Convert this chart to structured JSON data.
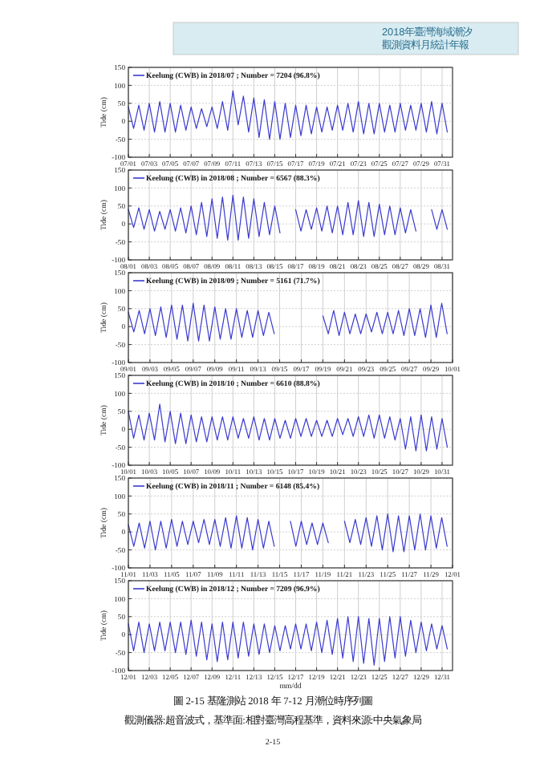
{
  "chart_data": [
    {
      "type": "line",
      "ylabel": "Tide (cm)",
      "ylim": [
        -100,
        150
      ],
      "yticks": [
        -100,
        -50,
        0,
        50,
        100,
        150
      ],
      "xlim": [
        "2018-07-01",
        "2018-08-01"
      ],
      "grid": true,
      "legend": "top left",
      "line_style": "solid",
      "annotations": [
        "2018年臺灣海域潮汐",
        "觀測資料月統計年報"
      ],
      "xticks": [
        {
          "value": "2018-07-01",
          "label": "07/01"
        },
        {
          "value": "2018-07-03",
          "label": "07/03"
        },
        {
          "value": "2018-07-05",
          "label": "07/05"
        },
        {
          "value": "2018-07-07",
          "label": "07/07"
        },
        {
          "value": "2018-07-09",
          "label": "07/09"
        },
        {
          "value": "2018-07-11",
          "label": "07/11"
        },
        {
          "value": "2018-07-13",
          "label": "07/13"
        },
        {
          "value": "2018-07-15",
          "label": "07/15"
        },
        {
          "value": "2018-07-17",
          "label": "07/17"
        },
        {
          "value": "2018-07-19",
          "label": "07/19"
        },
        {
          "value": "2018-07-21",
          "label": "07/21"
        },
        {
          "value": "2018-07-23",
          "label": "07/23"
        },
        {
          "value": "2018-07-25",
          "label": "07/25"
        },
        {
          "value": "2018-07-27",
          "label": "07/27"
        },
        {
          "value": "2018-07-29",
          "label": "07/29"
        },
        {
          "value": "2018-07-31",
          "label": "07/31"
        }
      ],
      "series": [
        {
          "name": "Keelung (CWB) in 2018/07 ; Number = 7204 (96.8%)",
          "color": "#3a3ad0",
          "x": [
            "2018-07-01",
            "2018-07-01T12:00",
            "2018-07-02",
            "2018-07-02T12:00",
            "2018-07-03",
            "2018-07-03T12:00",
            "2018-07-04",
            "2018-07-04T12:00",
            "2018-07-05",
            "2018-07-05T12:00",
            "2018-07-06",
            "2018-07-06T12:00",
            "2018-07-07",
            "2018-07-07T12:00",
            "2018-07-08",
            "2018-07-08T12:00",
            "2018-07-09",
            "2018-07-09T12:00",
            "2018-07-10",
            "2018-07-10T12:00",
            "2018-07-11",
            "2018-07-11T12:00",
            "2018-07-12",
            "2018-07-12T12:00",
            "2018-07-13",
            "2018-07-13T12:00",
            "2018-07-14",
            "2018-07-14T12:00",
            "2018-07-15",
            "2018-07-15T12:00",
            "2018-07-16",
            "2018-07-16T12:00",
            "2018-07-17",
            "2018-07-17T12:00",
            "2018-07-18",
            "2018-07-18T12:00",
            "2018-07-19",
            "2018-07-19T12:00",
            "2018-07-20",
            "2018-07-20T12:00",
            "2018-07-21",
            "2018-07-21T12:00",
            "2018-07-22",
            "2018-07-22T12:00",
            "2018-07-23",
            "2018-07-23T12:00",
            "2018-07-24",
            "2018-07-24T12:00",
            "2018-07-25",
            "2018-07-25T12:00",
            "2018-07-26",
            "2018-07-26T12:00",
            "2018-07-27",
            "2018-07-27T12:00",
            "2018-07-28",
            "2018-07-28T12:00",
            "2018-07-29",
            "2018-07-29T12:00",
            "2018-07-30",
            "2018-07-30T12:00",
            "2018-07-31",
            "2018-07-31T12:00"
          ],
          "values": [
            40,
            -20,
            45,
            -25,
            50,
            -30,
            55,
            -30,
            50,
            -30,
            45,
            -25,
            40,
            -20,
            35,
            -15,
            40,
            -20,
            55,
            -25,
            85,
            -10,
            70,
            -30,
            65,
            -45,
            60,
            -50,
            55,
            -50,
            50,
            -45,
            45,
            -40,
            45,
            -35,
            40,
            -30,
            40,
            -25,
            45,
            -25,
            50,
            -30,
            55,
            -35,
            50,
            -35,
            50,
            -30,
            45,
            -30,
            50,
            -25,
            45,
            -25,
            50,
            -30,
            55,
            -35,
            50,
            -30
          ]
        }
      ]
    },
    {
      "type": "line",
      "ylabel": "Tide (cm)",
      "ylim": [
        -100,
        150
      ],
      "yticks": [
        -100,
        -50,
        0,
        50,
        100,
        150
      ],
      "xlim": [
        "2018-08-01",
        "2018-09-01"
      ],
      "grid": true,
      "legend": "top left",
      "line_style": "solid",
      "xticks": [
        {
          "value": "2018-08-01",
          "label": "08/01"
        },
        {
          "value": "2018-08-03",
          "label": "08/03"
        },
        {
          "value": "2018-08-05",
          "label": "08/05"
        },
        {
          "value": "2018-08-07",
          "label": "08/07"
        },
        {
          "value": "2018-08-09",
          "label": "08/09"
        },
        {
          "value": "2018-08-11",
          "label": "08/11"
        },
        {
          "value": "2018-08-13",
          "label": "08/13"
        },
        {
          "value": "2018-08-15",
          "label": "08/15"
        },
        {
          "value": "2018-08-17",
          "label": "08/17"
        },
        {
          "value": "2018-08-19",
          "label": "08/19"
        },
        {
          "value": "2018-08-21",
          "label": "08/21"
        },
        {
          "value": "2018-08-23",
          "label": "08/23"
        },
        {
          "value": "2018-08-25",
          "label": "08/25"
        },
        {
          "value": "2018-08-27",
          "label": "08/27"
        },
        {
          "value": "2018-08-29",
          "label": "08/29"
        },
        {
          "value": "2018-08-31",
          "label": "08/31"
        }
      ],
      "series": [
        {
          "name": "Keelung (CWB) in 2018/08 ; Number = 6567 (88.3%)",
          "color": "#3a3ad0",
          "x": [
            "2018-08-01",
            "2018-08-01T12:00",
            "2018-08-02",
            "2018-08-02T12:00",
            "2018-08-03",
            "2018-08-03T12:00",
            "2018-08-04",
            "2018-08-04T12:00",
            "2018-08-05",
            "2018-08-05T12:00",
            "2018-08-06",
            "2018-08-06T12:00",
            "2018-08-07",
            "2018-08-07T12:00",
            "2018-08-08",
            "2018-08-08T12:00",
            "2018-08-09",
            "2018-08-09T12:00",
            "2018-08-10",
            "2018-08-10T12:00",
            "2018-08-11",
            "2018-08-11T12:00",
            "2018-08-12",
            "2018-08-12T12:00",
            "2018-08-13",
            "2018-08-13T12:00",
            "2018-08-14",
            "2018-08-14T12:00",
            "2018-08-15",
            "2018-08-15T12:00"
          ],
          "values": [
            40,
            -10,
            45,
            -15,
            40,
            -20,
            35,
            -15,
            40,
            -20,
            45,
            -25,
            50,
            -30,
            60,
            -35,
            70,
            -40,
            75,
            -45,
            80,
            -45,
            75,
            -40,
            70,
            -35,
            60,
            -30,
            50,
            -25
          ]
        },
        {
          "color": "#3a3ad0",
          "x": [
            "2018-08-17",
            "2018-08-17T12:00",
            "2018-08-18",
            "2018-08-18T12:00",
            "2018-08-19",
            "2018-08-19T12:00",
            "2018-08-20",
            "2018-08-20T12:00",
            "2018-08-21",
            "2018-08-21T12:00",
            "2018-08-22",
            "2018-08-22T12:00",
            "2018-08-23",
            "2018-08-23T12:00",
            "2018-08-24",
            "2018-08-24T12:00",
            "2018-08-25",
            "2018-08-25T12:00",
            "2018-08-26",
            "2018-08-26T12:00",
            "2018-08-27",
            "2018-08-27T12:00",
            "2018-08-28",
            "2018-08-28T12:00"
          ],
          "values": [
            40,
            -20,
            40,
            -15,
            45,
            -20,
            50,
            -25,
            50,
            -30,
            60,
            -30,
            65,
            -35,
            60,
            -35,
            55,
            -30,
            50,
            -30,
            45,
            -25,
            40,
            -20
          ]
        },
        {
          "color": "#3a3ad0",
          "x": [
            "2018-08-30",
            "2018-08-30T12:00",
            "2018-08-31",
            "2018-08-31T12:00"
          ],
          "values": [
            40,
            -15,
            40,
            -15
          ]
        }
      ]
    },
    {
      "type": "line",
      "ylabel": "Tide (cm)",
      "ylim": [
        -100,
        150
      ],
      "yticks": [
        -100,
        -50,
        0,
        50,
        100,
        150
      ],
      "xlim": [
        "2018-09-01",
        "2018-10-01"
      ],
      "grid": true,
      "legend": "top left",
      "line_style": "solid",
      "xticks": [
        {
          "value": "2018-09-01",
          "label": "09/01"
        },
        {
          "value": "2018-09-03",
          "label": "09/03"
        },
        {
          "value": "2018-09-05",
          "label": "09/05"
        },
        {
          "value": "2018-09-07",
          "label": "09/07"
        },
        {
          "value": "2018-09-09",
          "label": "09/09"
        },
        {
          "value": "2018-09-11",
          "label": "09/11"
        },
        {
          "value": "2018-09-13",
          "label": "09/13"
        },
        {
          "value": "2018-09-15",
          "label": "09/15"
        },
        {
          "value": "2018-09-17",
          "label": "09/17"
        },
        {
          "value": "2018-09-19",
          "label": "09/19"
        },
        {
          "value": "2018-09-21",
          "label": "09/21"
        },
        {
          "value": "2018-09-23",
          "label": "09/23"
        },
        {
          "value": "2018-09-25",
          "label": "09/25"
        },
        {
          "value": "2018-09-27",
          "label": "09/27"
        },
        {
          "value": "2018-09-29",
          "label": "09/29"
        },
        {
          "value": "2018-10-01",
          "label": "10/01"
        }
      ],
      "series": [
        {
          "name": "Keelung (CWB) in 2018/09 ; Number = 5161 (71.7%)",
          "color": "#3a3ad0",
          "x": [
            "2018-09-01",
            "2018-09-01T12:00",
            "2018-09-02",
            "2018-09-02T12:00",
            "2018-09-03",
            "2018-09-03T12:00",
            "2018-09-04",
            "2018-09-04T12:00",
            "2018-09-05",
            "2018-09-05T12:00",
            "2018-09-06",
            "2018-09-06T12:00",
            "2018-09-07",
            "2018-09-07T12:00",
            "2018-09-08",
            "2018-09-08T12:00",
            "2018-09-09",
            "2018-09-09T12:00",
            "2018-09-10",
            "2018-09-10T12:00",
            "2018-09-11",
            "2018-09-11T12:00",
            "2018-09-12",
            "2018-09-12T12:00",
            "2018-09-13",
            "2018-09-13T12:00",
            "2018-09-14",
            "2018-09-14T12:00"
          ],
          "values": [
            40,
            -15,
            45,
            -20,
            50,
            -25,
            55,
            -30,
            60,
            -35,
            60,
            -40,
            65,
            -40,
            60,
            -40,
            55,
            -35,
            50,
            -35,
            50,
            -30,
            45,
            -30,
            45,
            -25,
            40,
            -20
          ]
        },
        {
          "color": "#3a3ad0",
          "x": [
            "2018-09-19",
            "2018-09-19T12:00",
            "2018-09-20",
            "2018-09-20T12:00",
            "2018-09-21",
            "2018-09-21T12:00",
            "2018-09-22",
            "2018-09-22T12:00",
            "2018-09-23",
            "2018-09-23T12:00",
            "2018-09-24",
            "2018-09-24T12:00",
            "2018-09-25",
            "2018-09-25T12:00",
            "2018-09-26",
            "2018-09-26T12:00",
            "2018-09-27",
            "2018-09-27T12:00",
            "2018-09-28",
            "2018-09-28T12:00",
            "2018-09-29",
            "2018-09-29T12:00",
            "2018-09-30",
            "2018-09-30T12:00"
          ],
          "values": [
            30,
            -20,
            45,
            -25,
            40,
            -20,
            35,
            -20,
            35,
            -15,
            40,
            -20,
            40,
            -20,
            45,
            -25,
            50,
            -25,
            50,
            -30,
            60,
            -30,
            65,
            -20
          ]
        }
      ]
    },
    {
      "type": "line",
      "ylabel": "Tide (cm)",
      "ylim": [
        -100,
        150
      ],
      "yticks": [
        -100,
        -50,
        0,
        50,
        100,
        150
      ],
      "xlim": [
        "2018-10-01",
        "2018-11-01"
      ],
      "grid": true,
      "legend": "top left",
      "line_style": "solid",
      "xticks": [
        {
          "value": "2018-10-01",
          "label": "10/01"
        },
        {
          "value": "2018-10-03",
          "label": "10/03"
        },
        {
          "value": "2018-10-05",
          "label": "10/05"
        },
        {
          "value": "2018-10-07",
          "label": "10/07"
        },
        {
          "value": "2018-10-09",
          "label": "10/09"
        },
        {
          "value": "2018-10-11",
          "label": "10/11"
        },
        {
          "value": "2018-10-13",
          "label": "10/13"
        },
        {
          "value": "2018-10-15",
          "label": "10/15"
        },
        {
          "value": "2018-10-17",
          "label": "10/17"
        },
        {
          "value": "2018-10-19",
          "label": "10/19"
        },
        {
          "value": "2018-10-21",
          "label": "10/21"
        },
        {
          "value": "2018-10-23",
          "label": "10/23"
        },
        {
          "value": "2018-10-25",
          "label": "10/25"
        },
        {
          "value": "2018-10-27",
          "label": "10/27"
        },
        {
          "value": "2018-10-29",
          "label": "10/29"
        },
        {
          "value": "2018-10-31",
          "label": "10/31"
        }
      ],
      "series": [
        {
          "name": "Keelung (CWB) in 2018/10 ; Number = 6610 (88.8%)",
          "color": "#3a3ad0",
          "x": [
            "2018-10-01",
            "2018-10-01T12:00",
            "2018-10-02",
            "2018-10-02T12:00",
            "2018-10-03",
            "2018-10-03T12:00",
            "2018-10-04",
            "2018-10-04T12:00",
            "2018-10-05",
            "2018-10-05T12:00",
            "2018-10-06",
            "2018-10-06T12:00",
            "2018-10-07",
            "2018-10-07T12:00",
            "2018-10-08",
            "2018-10-08T12:00",
            "2018-10-09",
            "2018-10-09T12:00",
            "2018-10-10",
            "2018-10-10T12:00",
            "2018-10-11",
            "2018-10-11T12:00",
            "2018-10-12",
            "2018-10-12T12:00",
            "2018-10-13",
            "2018-10-13T12:00",
            "2018-10-14",
            "2018-10-14T12:00",
            "2018-10-15",
            "2018-10-15T12:00",
            "2018-10-16",
            "2018-10-16T12:00",
            "2018-10-17",
            "2018-10-17T12:00",
            "2018-10-18",
            "2018-10-18T12:00",
            "2018-10-19",
            "2018-10-19T12:00",
            "2018-10-20",
            "2018-10-20T12:00",
            "2018-10-21",
            "2018-10-21T12:00",
            "2018-10-22",
            "2018-10-22T12:00",
            "2018-10-23",
            "2018-10-23T12:00",
            "2018-10-24",
            "2018-10-24T12:00",
            "2018-10-25",
            "2018-10-25T12:00",
            "2018-10-26",
            "2018-10-26T12:00",
            "2018-10-27",
            "2018-10-27T12:00",
            "2018-10-28",
            "2018-10-28T12:00",
            "2018-10-29",
            "2018-10-29T12:00",
            "2018-10-30",
            "2018-10-30T12:00",
            "2018-10-31",
            "2018-10-31T12:00"
          ],
          "values": [
            50,
            -25,
            40,
            -30,
            45,
            -30,
            70,
            -35,
            50,
            -40,
            45,
            -40,
            40,
            -35,
            35,
            -35,
            35,
            -30,
            35,
            -30,
            35,
            -25,
            30,
            -25,
            35,
            -30,
            30,
            -30,
            30,
            -25,
            25,
            -25,
            30,
            -20,
            30,
            -20,
            25,
            -20,
            25,
            -20,
            30,
            -15,
            30,
            -20,
            35,
            -20,
            40,
            -25,
            40,
            -25,
            35,
            -30,
            30,
            -55,
            35,
            -60,
            40,
            -60,
            35,
            -55,
            30,
            -50
          ]
        }
      ]
    },
    {
      "type": "line",
      "ylabel": "Tide (cm)",
      "ylim": [
        -100,
        150
      ],
      "yticks": [
        -100,
        -50,
        0,
        50,
        100,
        150
      ],
      "xlim": [
        "2018-11-01",
        "2018-12-01"
      ],
      "grid": true,
      "legend": "top left",
      "line_style": "solid",
      "xticks": [
        {
          "value": "2018-11-01",
          "label": "11/01"
        },
        {
          "value": "2018-11-03",
          "label": "11/03"
        },
        {
          "value": "2018-11-05",
          "label": "11/05"
        },
        {
          "value": "2018-11-07",
          "label": "11/07"
        },
        {
          "value": "2018-11-09",
          "label": "11/09"
        },
        {
          "value": "2018-11-11",
          "label": "11/11"
        },
        {
          "value": "2018-11-13",
          "label": "11/13"
        },
        {
          "value": "2018-11-15",
          "label": "11/15"
        },
        {
          "value": "2018-11-17",
          "label": "11/17"
        },
        {
          "value": "2018-11-19",
          "label": "11/19"
        },
        {
          "value": "2018-11-21",
          "label": "11/21"
        },
        {
          "value": "2018-11-23",
          "label": "11/23"
        },
        {
          "value": "2018-11-25",
          "label": "11/25"
        },
        {
          "value": "2018-11-27",
          "label": "11/27"
        },
        {
          "value": "2018-11-29",
          "label": "11/29"
        },
        {
          "value": "2018-12-01",
          "label": "12/01"
        }
      ],
      "series": [
        {
          "name": "Keelung (CWB) in 2018/11 ; Number = 6148 (85.4%)",
          "color": "#3a3ad0",
          "x": [
            "2018-11-01",
            "2018-11-01T12:00",
            "2018-11-02",
            "2018-11-02T12:00",
            "2018-11-03",
            "2018-11-03T12:00",
            "2018-11-04",
            "2018-11-04T12:00",
            "2018-11-05",
            "2018-11-05T12:00",
            "2018-11-06",
            "2018-11-06T12:00",
            "2018-11-07",
            "2018-11-07T12:00",
            "2018-11-08",
            "2018-11-08T12:00",
            "2018-11-09",
            "2018-11-09T12:00",
            "2018-11-10",
            "2018-11-10T12:00",
            "2018-11-11",
            "2018-11-11T12:00",
            "2018-11-12",
            "2018-11-12T12:00",
            "2018-11-13",
            "2018-11-13T12:00",
            "2018-11-14",
            "2018-11-14T12:00"
          ],
          "values": [
            20,
            -40,
            25,
            -45,
            30,
            -50,
            30,
            -45,
            35,
            -40,
            30,
            -35,
            30,
            -30,
            35,
            -35,
            35,
            -40,
            40,
            -45,
            45,
            -45,
            40,
            -50,
            35,
            -45,
            30,
            -40
          ]
        },
        {
          "color": "#3a3ad0",
          "x": [
            "2018-11-16",
            "2018-11-16T12:00",
            "2018-11-17",
            "2018-11-17T12:00",
            "2018-11-18",
            "2018-11-18T12:00",
            "2018-11-19",
            "2018-11-19T12:00"
          ],
          "values": [
            30,
            -40,
            30,
            -35,
            25,
            -35,
            25,
            -30
          ]
        },
        {
          "color": "#3a3ad0",
          "x": [
            "2018-11-21",
            "2018-11-21T12:00",
            "2018-11-22",
            "2018-11-22T12:00",
            "2018-11-23",
            "2018-11-23T12:00",
            "2018-11-24",
            "2018-11-24T12:00",
            "2018-11-25",
            "2018-11-25T12:00",
            "2018-11-26",
            "2018-11-26T12:00",
            "2018-11-27",
            "2018-11-27T12:00",
            "2018-11-28",
            "2018-11-28T12:00",
            "2018-11-29",
            "2018-11-29T12:00",
            "2018-11-30",
            "2018-11-30T12:00"
          ],
          "values": [
            30,
            -30,
            35,
            -35,
            40,
            -40,
            45,
            -50,
            50,
            -55,
            45,
            -55,
            45,
            -50,
            50,
            -50,
            45,
            -45,
            40,
            -40
          ]
        }
      ]
    },
    {
      "type": "line",
      "ylabel": "Tide (cm)",
      "xlabel": "mm/dd",
      "ylim": [
        -100,
        150
      ],
      "yticks": [
        -100,
        -50,
        0,
        50,
        100,
        150
      ],
      "xlim": [
        "2018-12-01",
        "2019-01-01"
      ],
      "grid": true,
      "legend": "top left",
      "line_style": "solid",
      "annotations": [
        "圖 2-15 基隆測站 2018 年 7-12 月潮位時序列圖",
        "觀測儀器:超音波式，基準面:相對臺灣高程基準，資料來源:中央氣象局",
        "2-15"
      ],
      "xticks": [
        {
          "value": "2018-12-01",
          "label": "12/01"
        },
        {
          "value": "2018-12-03",
          "label": "12/03"
        },
        {
          "value": "2018-12-05",
          "label": "12/05"
        },
        {
          "value": "2018-12-07",
          "label": "12/07"
        },
        {
          "value": "2018-12-09",
          "label": "12/09"
        },
        {
          "value": "2018-12-11",
          "label": "12/11"
        },
        {
          "value": "2018-12-13",
          "label": "12/13"
        },
        {
          "value": "2018-12-15",
          "label": "12/15"
        },
        {
          "value": "2018-12-17",
          "label": "12/17"
        },
        {
          "value": "2018-12-19",
          "label": "12/19"
        },
        {
          "value": "2018-12-21",
          "label": "12/21"
        },
        {
          "value": "2018-12-23",
          "label": "12/23"
        },
        {
          "value": "2018-12-25",
          "label": "12/25"
        },
        {
          "value": "2018-12-27",
          "label": "12/27"
        },
        {
          "value": "2018-12-29",
          "label": "12/29"
        },
        {
          "value": "2018-12-31",
          "label": "12/31"
        }
      ],
      "series": [
        {
          "name": "Keelung (CWB) in 2018/12 ; Number = 7209 (96.9%)",
          "color": "#3a3ad0",
          "x": [
            "2018-12-01",
            "2018-12-01T12:00",
            "2018-12-02",
            "2018-12-02T12:00",
            "2018-12-03",
            "2018-12-03T12:00",
            "2018-12-04",
            "2018-12-04T12:00",
            "2018-12-05",
            "2018-12-05T12:00",
            "2018-12-06",
            "2018-12-06T12:00",
            "2018-12-07",
            "2018-12-07T12:00",
            "2018-12-08",
            "2018-12-08T12:00",
            "2018-12-09",
            "2018-12-09T12:00",
            "2018-12-10",
            "2018-12-10T12:00",
            "2018-12-11",
            "2018-12-11T12:00",
            "2018-12-12",
            "2018-12-12T12:00",
            "2018-12-13",
            "2018-12-13T12:00",
            "2018-12-14",
            "2018-12-14T12:00",
            "2018-12-15",
            "2018-12-15T12:00",
            "2018-12-16",
            "2018-12-16T12:00",
            "2018-12-17",
            "2018-12-17T12:00",
            "2018-12-18",
            "2018-12-18T12:00",
            "2018-12-19",
            "2018-12-19T12:00",
            "2018-12-20",
            "2018-12-20T12:00",
            "2018-12-21",
            "2018-12-21T12:00",
            "2018-12-22",
            "2018-12-22T12:00",
            "2018-12-23",
            "2018-12-23T12:00",
            "2018-12-24",
            "2018-12-24T12:00",
            "2018-12-25",
            "2018-12-25T12:00",
            "2018-12-26",
            "2018-12-26T12:00",
            "2018-12-27",
            "2018-12-27T12:00",
            "2018-12-28",
            "2018-12-28T12:00",
            "2018-12-29",
            "2018-12-29T12:00",
            "2018-12-30",
            "2018-12-30T12:00",
            "2018-12-31",
            "2018-12-31T12:00"
          ],
          "values": [
            30,
            -45,
            35,
            -50,
            30,
            -45,
            35,
            -45,
            35,
            -50,
            35,
            -55,
            40,
            -60,
            35,
            -70,
            30,
            -75,
            35,
            -70,
            35,
            -65,
            35,
            -60,
            30,
            -55,
            30,
            -50,
            25,
            -45,
            25,
            -40,
            30,
            -40,
            30,
            -45,
            35,
            -50,
            40,
            -55,
            45,
            -65,
            50,
            -75,
            50,
            -80,
            45,
            -85,
            45,
            -75,
            50,
            -65,
            50,
            -60,
            40,
            -50,
            35,
            -45,
            30,
            -40,
            25,
            -40
          ]
        }
      ]
    }
  ]
}
